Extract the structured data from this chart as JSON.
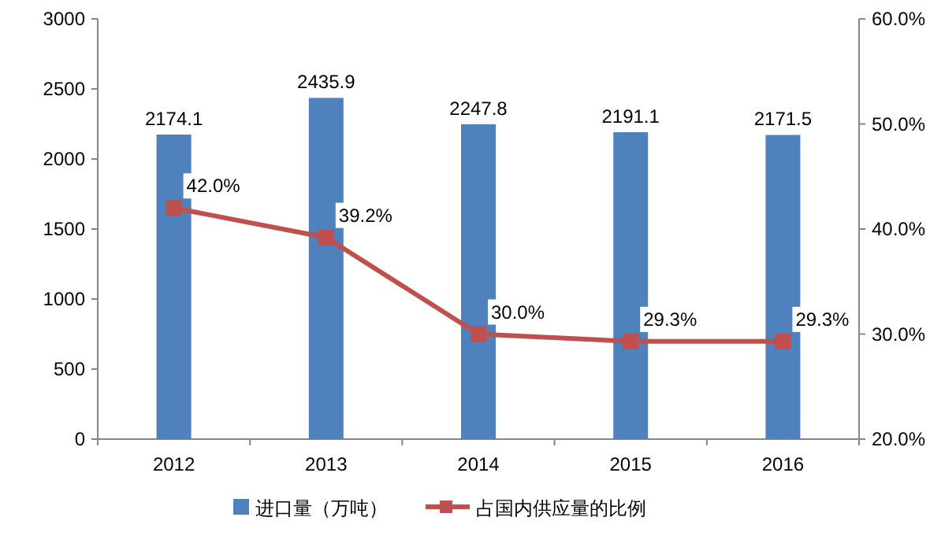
{
  "chart_data": {
    "type": "bar",
    "categories": [
      "2012",
      "2013",
      "2014",
      "2015",
      "2016"
    ],
    "series": [
      {
        "name": "进口量（万吨）",
        "color": "#4f81bd",
        "values": [
          2174.1,
          2435.9,
          2247.8,
          2191.1,
          2171.5
        ],
        "value_labels": [
          "2174.1",
          "2435.9",
          "2247.8",
          "2191.1",
          "2171.5"
        ]
      },
      {
        "name": "占国内供应量的比例",
        "type": "line",
        "axis": "y2",
        "color": "#c0504d",
        "marker": "square",
        "line_style": "solid",
        "values": [
          42.0,
          39.2,
          30.0,
          29.3,
          29.3
        ],
        "value_labels": [
          "42.0%",
          "39.2%",
          "30.0%",
          "29.3%",
          "29.3%"
        ]
      }
    ],
    "ylim": [
      0,
      3000
    ],
    "yticks": [
      0,
      500,
      1000,
      1500,
      2000,
      2500,
      3000
    ],
    "y2lim": [
      20,
      60
    ],
    "y2ticks": [
      {
        "value": 20,
        "label": "20.0%"
      },
      {
        "value": 30,
        "label": "30.0%"
      },
      {
        "value": 40,
        "label": "40.0%"
      },
      {
        "value": 50,
        "label": "50.0%"
      },
      {
        "value": 60,
        "label": "60.0%"
      }
    ],
    "grid": false,
    "legend": "bottom"
  }
}
